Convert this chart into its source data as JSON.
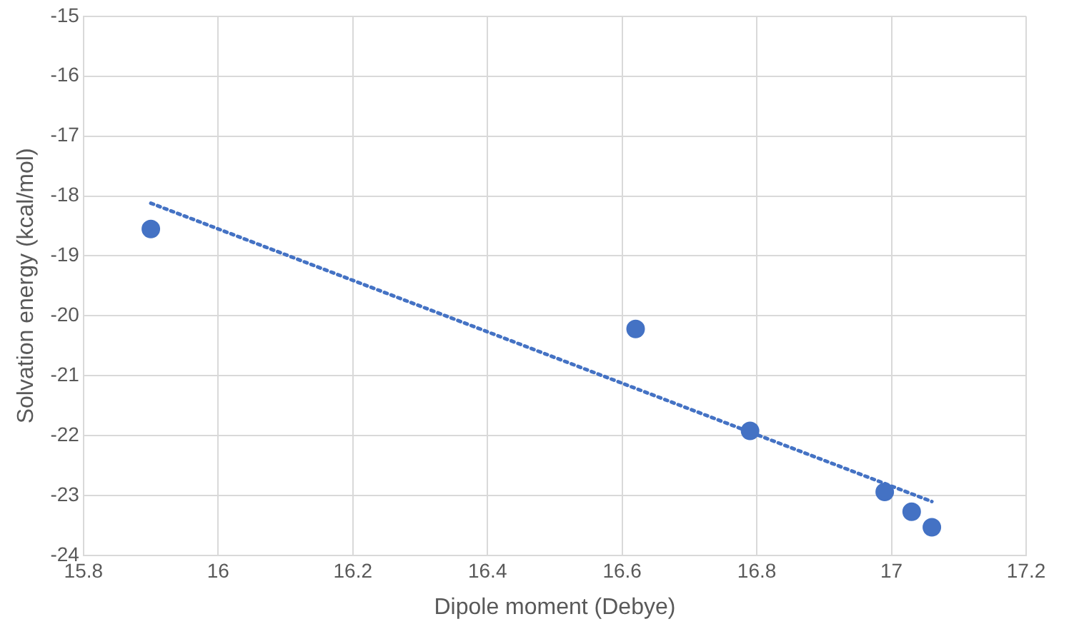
{
  "chart_data": {
    "type": "scatter",
    "xlabel": "Dipole moment (Debye)",
    "ylabel": "Solvation energy (kcal/mol)",
    "xlim": [
      15.8,
      17.2
    ],
    "xticks": [
      15.8,
      16,
      16.2,
      16.4,
      16.6,
      16.8,
      17,
      17.2
    ],
    "ylim": [
      -24,
      -15
    ],
    "yticks": [
      -24,
      -23,
      -22,
      -21,
      -20,
      -19,
      -18,
      -17,
      -16,
      -15
    ],
    "grid": true,
    "marker": "circle",
    "series": [
      {
        "color": "#4472c4",
        "x": [
          15.9,
          16.62,
          16.79,
          16.99,
          17.03,
          17.06
        ],
        "values": [
          -18.55,
          -20.22,
          -21.92,
          -22.94,
          -23.27,
          -23.53
        ]
      },
      {
        "type": "line",
        "line_style": "dotted",
        "marker": "none",
        "color": "#4472c4",
        "x": [
          15.9,
          17.06
        ],
        "values": [
          -18.12,
          -23.1
        ]
      }
    ]
  }
}
